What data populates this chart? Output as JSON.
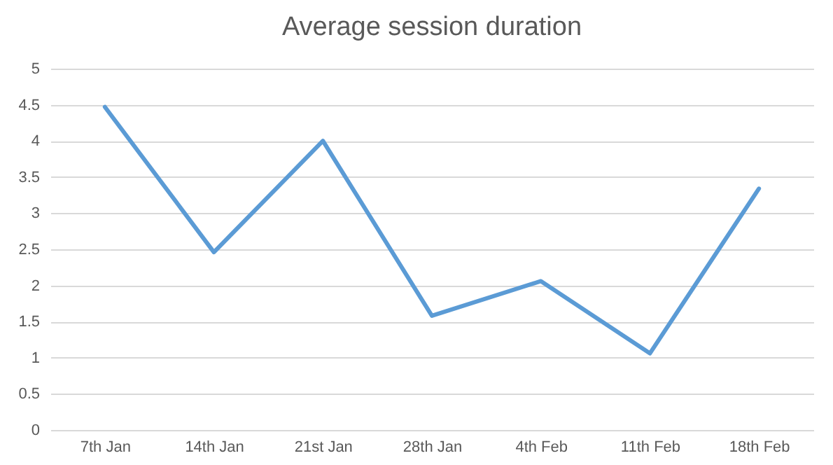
{
  "chart_data": {
    "type": "line",
    "title": "Average session duration",
    "categories": [
      "7th Jan",
      "14th Jan",
      "21st Jan",
      "28th Jan",
      "4th Feb",
      "11th Feb",
      "18th Feb"
    ],
    "series": [
      {
        "color": "#5b9bd5",
        "values": [
          4.47,
          2.46,
          4.0,
          1.58,
          2.06,
          1.06,
          3.34
        ]
      }
    ],
    "ylim": [
      0,
      5
    ],
    "yticks": [
      0,
      0.5,
      1,
      1.5,
      2,
      2.5,
      3,
      3.5,
      4,
      4.5,
      5
    ],
    "grid": "y",
    "legend": false,
    "marker": "none",
    "line_style": "solid"
  }
}
